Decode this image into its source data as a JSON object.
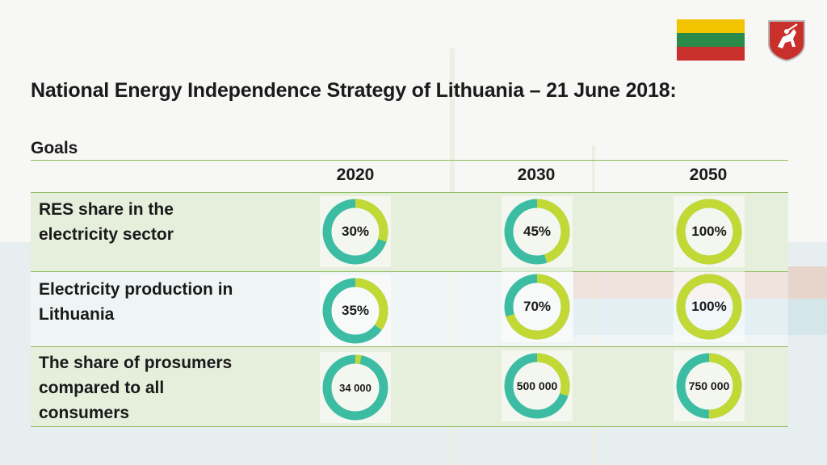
{
  "slide": {
    "title": "National Energy Independence Strategy of Lithuania – 21 June 2018:",
    "section_heading": "Goals"
  },
  "colors": {
    "teal": "#3dbca4",
    "lime": "#c2d935",
    "row_band": "#e6eedc",
    "rule": "#8dbb5a",
    "flag_yellow": "#f2c500",
    "flag_green": "#2a8a4a",
    "flag_red": "#c9302c"
  },
  "table": {
    "years": [
      "2020",
      "2030",
      "2050"
    ],
    "rows": [
      {
        "label": "RES share in the electricity sector",
        "label_lines": [
          "RES share in the",
          "electricity sector"
        ],
        "cells": [
          {
            "text": "30%",
            "lime_fraction": 0.3
          },
          {
            "text": "45%",
            "lime_fraction": 0.45
          },
          {
            "text": "100%",
            "lime_fraction": 1.0
          }
        ]
      },
      {
        "label": "Electricity production in Lithuania",
        "label_lines": [
          "Electricity production in",
          "Lithuania"
        ],
        "cells": [
          {
            "text": "35%",
            "lime_fraction": 0.35
          },
          {
            "text": "70%",
            "lime_fraction": 0.7
          },
          {
            "text": "100%",
            "lime_fraction": 1.0
          }
        ]
      },
      {
        "label": "The share of prosumers compared to all consumers",
        "label_lines": [
          "The share of prosumers",
          "compared to all",
          "consumers"
        ],
        "cells": [
          {
            "text": "34 000",
            "lime_fraction": 0.03
          },
          {
            "text": "500 000",
            "lime_fraction": 0.3
          },
          {
            "text": "750 000",
            "lime_fraction": 0.5
          }
        ]
      }
    ]
  },
  "icons": {
    "flag": "lithuania-flag-icon",
    "coat_of_arms": "lithuania-coat-of-arms-icon"
  }
}
